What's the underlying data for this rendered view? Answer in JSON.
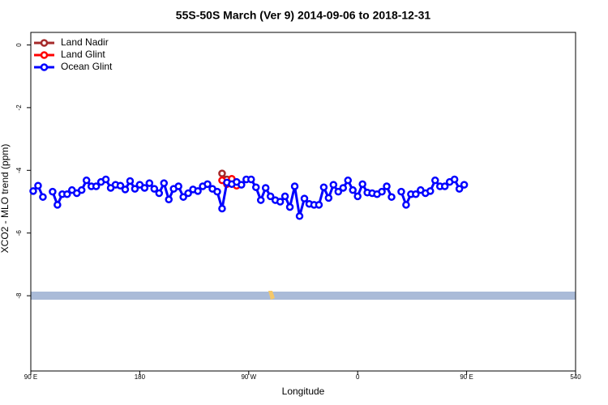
{
  "chart_data": {
    "type": "line",
    "title": "55S-50S March (Ver 9)   2014-09-06 to 2018-12-31",
    "xlabel": "Longitude",
    "ylabel": "XCO2 - MLO trend (ppm)",
    "xlim": [
      90,
      540
    ],
    "ylim": [
      -10.4,
      0.4
    ],
    "xticks": [
      {
        "value": 90,
        "label": "90 E"
      },
      180,
      {
        "value": 270,
        "label": "90 W"
      },
      {
        "value": 360,
        "label": "0"
      },
      {
        "value": 450,
        "label": "90 E"
      },
      540
    ],
    "yticks": [
      0,
      -2,
      -4,
      -6,
      -8
    ],
    "legend": "top-left",
    "series": [
      {
        "name": "Land Nadir",
        "color": "#a52a2a",
        "x": [
          248,
          252
        ],
        "values": [
          -4.1,
          -4.29
        ]
      },
      {
        "name": "Land Glint",
        "color": "#ff0000",
        "x": [
          248,
          252,
          256,
          260
        ],
        "values": [
          -4.32,
          -4.44,
          -4.27,
          -4.49
        ]
      },
      {
        "name": "Ocean Glint",
        "color": "#0000ff",
        "x": [
          92,
          96,
          100,
          104,
          108,
          112,
          116,
          120,
          124,
          128,
          132,
          136,
          140,
          144,
          148,
          152,
          156,
          160,
          164,
          168,
          172,
          176,
          180,
          184,
          188,
          192,
          196,
          200,
          204,
          208,
          212,
          216,
          220,
          224,
          228,
          232,
          236,
          240,
          244,
          248,
          252,
          256,
          260,
          264,
          268,
          272,
          276,
          280,
          284,
          288,
          292,
          296,
          300,
          304,
          308,
          312,
          316,
          320,
          324,
          328,
          332,
          336,
          340,
          344,
          348,
          352,
          356,
          360,
          364,
          368,
          372,
          376,
          380,
          384,
          388,
          392,
          396,
          400,
          404,
          408,
          412,
          416,
          420,
          424,
          428,
          432,
          436,
          440,
          444,
          448
        ],
        "values": [
          -4.66,
          -4.49,
          -4.85,
          null,
          -4.68,
          -5.1,
          -4.76,
          -4.76,
          -4.63,
          -4.73,
          -4.63,
          -4.32,
          -4.51,
          -4.51,
          -4.37,
          -4.29,
          -4.56,
          -4.46,
          -4.49,
          -4.61,
          -4.34,
          -4.59,
          -4.46,
          -4.56,
          -4.41,
          -4.59,
          -4.73,
          -4.41,
          -4.93,
          -4.59,
          -4.51,
          -4.85,
          -4.73,
          -4.61,
          -4.66,
          -4.51,
          -4.44,
          -4.59,
          -4.68,
          -5.22,
          -4.39,
          -4.44,
          -4.37,
          -4.46,
          -4.29,
          -4.29,
          -4.54,
          -4.95,
          -4.56,
          -4.83,
          -4.95,
          -5.0,
          -4.83,
          -5.17,
          -4.51,
          -5.46,
          -4.9,
          -5.07,
          -5.1,
          -5.1,
          -4.54,
          -4.88,
          -4.46,
          -4.68,
          -4.56,
          -4.32,
          -4.63,
          -4.83,
          -4.44,
          -4.71,
          -4.73,
          -4.76,
          -4.68,
          -4.51,
          -4.85,
          null,
          -4.68,
          -5.1,
          -4.76,
          -4.76,
          -4.63,
          -4.73,
          -4.66,
          -4.32,
          -4.51,
          -4.51,
          -4.37,
          -4.29,
          -4.59,
          -4.46
        ]
      }
    ]
  }
}
